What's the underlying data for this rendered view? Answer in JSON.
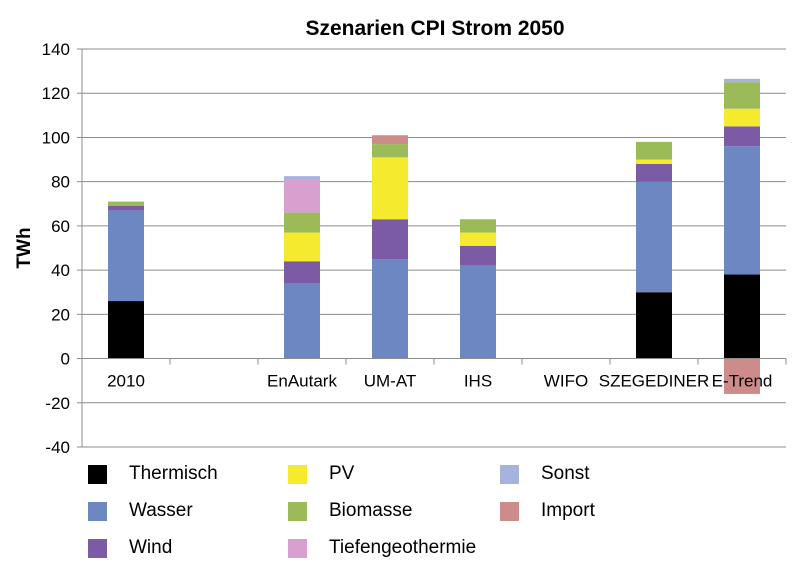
{
  "chart_data": {
    "type": "bar",
    "stacked": true,
    "title": "Szenarien CPI Strom 2050",
    "xlabel": "",
    "ylabel": "TWh",
    "ylim": [
      -40,
      140
    ],
    "yticks": [
      -40,
      -20,
      0,
      20,
      40,
      60,
      80,
      100,
      120,
      140
    ],
    "grid": true,
    "legend_position": "bottom",
    "categories": [
      "2010",
      "",
      "EnAutark",
      "UM-AT",
      "IHS",
      "WIFO",
      "SZEGEDINER",
      "E-Trend"
    ],
    "series": [
      {
        "name": "Thermisch",
        "color": "#000000",
        "values": [
          26,
          0,
          0,
          0,
          0,
          0,
          30,
          38
        ]
      },
      {
        "name": "Wasser",
        "color": "#6c87c2",
        "values": [
          41,
          0,
          34,
          45,
          42,
          0,
          50,
          58
        ]
      },
      {
        "name": "Wind",
        "color": "#7b5ba5",
        "values": [
          2,
          0,
          10,
          18,
          9,
          0,
          8,
          9
        ]
      },
      {
        "name": "PV",
        "color": "#f5ea2e",
        "values": [
          0,
          0,
          13,
          28,
          6,
          0,
          2,
          8
        ]
      },
      {
        "name": "Biomasse",
        "color": "#9bbb59",
        "values": [
          2,
          0,
          9,
          6,
          6,
          0,
          8,
          12
        ]
      },
      {
        "name": "Tiefengeothermie",
        "color": "#d8a0ce",
        "values": [
          0,
          0,
          15,
          0,
          0,
          0,
          0,
          0
        ]
      },
      {
        "name": "Sonst",
        "color": "#a6b3dd",
        "values": [
          0,
          0,
          1.5,
          0,
          0,
          0,
          0,
          1.5
        ]
      },
      {
        "name": "Import",
        "color": "#cd8c8a",
        "values": [
          0,
          0,
          0,
          4,
          0,
          0,
          0,
          -16
        ]
      }
    ]
  }
}
